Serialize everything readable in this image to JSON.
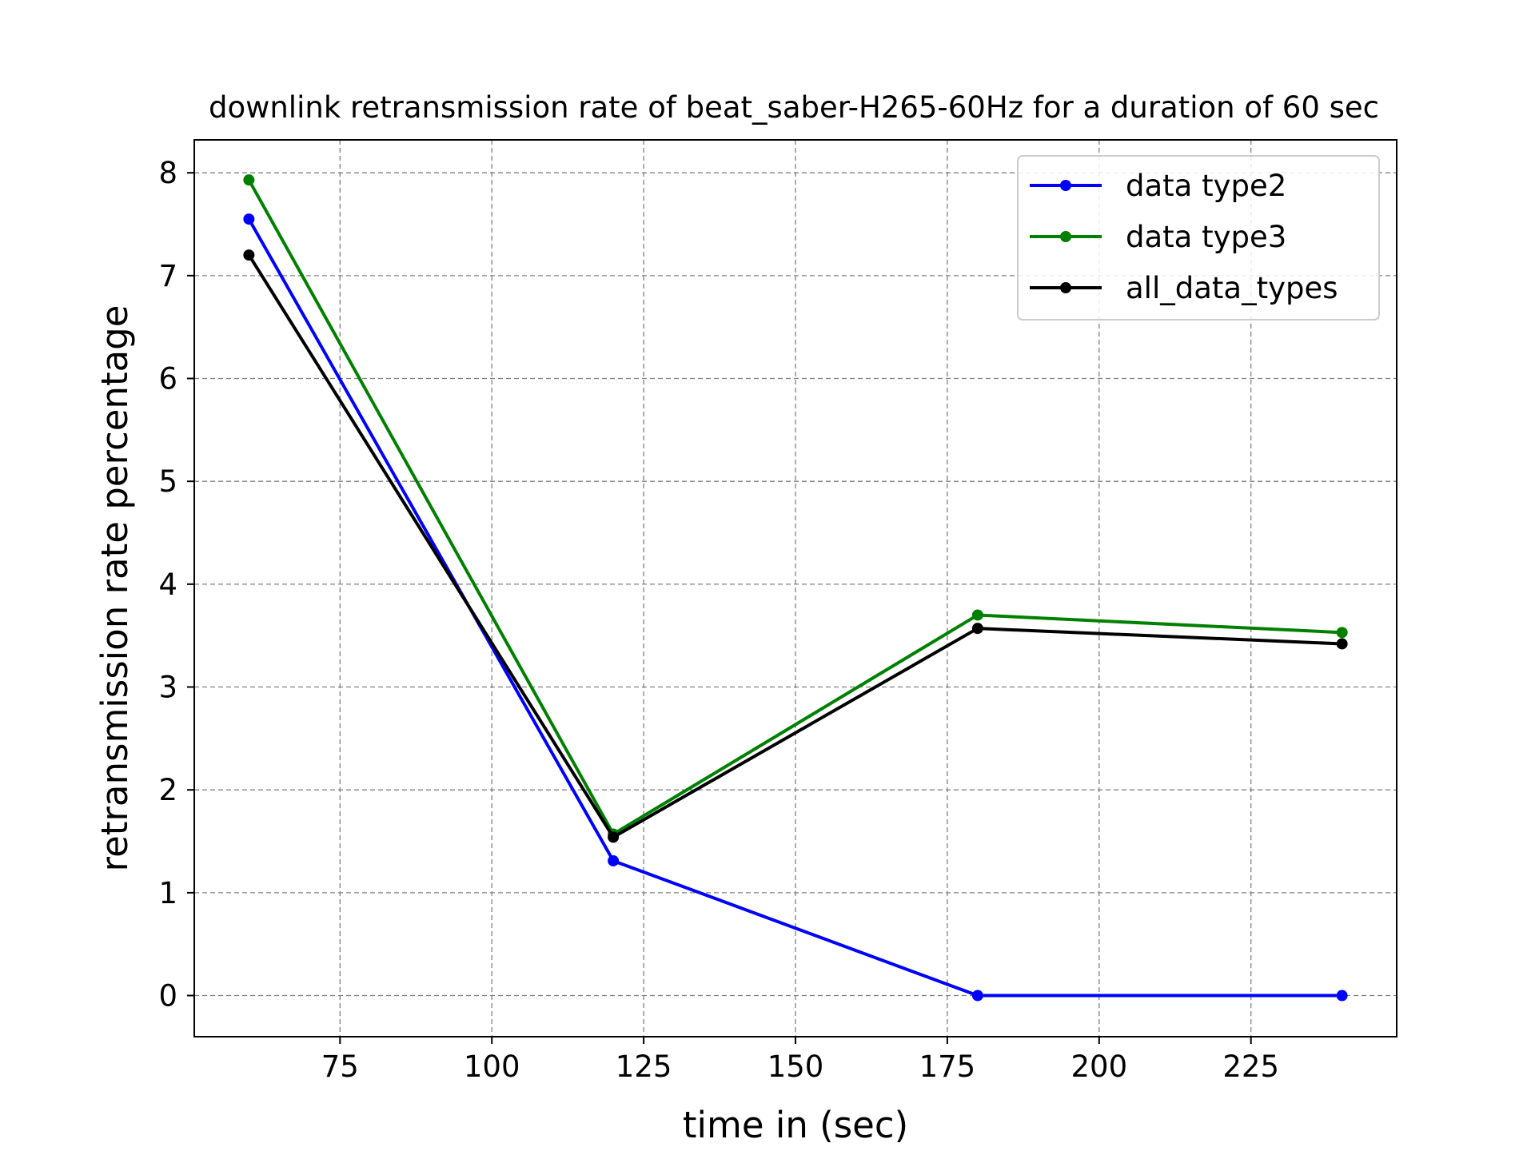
{
  "chart_data": {
    "type": "line",
    "title": "downlink retransmission rate of beat_saber-H265-60Hz for a duration of 60 sec",
    "xlabel": "time in (sec)",
    "ylabel": "retransmission rate percentage",
    "x": [
      60,
      120,
      180,
      240
    ],
    "xlim": [
      51,
      249
    ],
    "ylim": [
      -0.4,
      8.32
    ],
    "xticks": [
      75,
      100,
      125,
      150,
      175,
      200,
      225
    ],
    "yticks": [
      0,
      1,
      2,
      3,
      4,
      5,
      6,
      7,
      8
    ],
    "grid": true,
    "legend_position": "top-right",
    "series": [
      {
        "name": "data type2",
        "color": "#0000ff",
        "values": [
          7.55,
          1.31,
          0.0,
          0.0
        ]
      },
      {
        "name": "data type3",
        "color": "#008000",
        "values": [
          7.93,
          1.57,
          3.7,
          3.53
        ]
      },
      {
        "name": "all_data_types",
        "color": "#000000",
        "values": [
          7.2,
          1.54,
          3.57,
          3.42
        ]
      }
    ]
  }
}
